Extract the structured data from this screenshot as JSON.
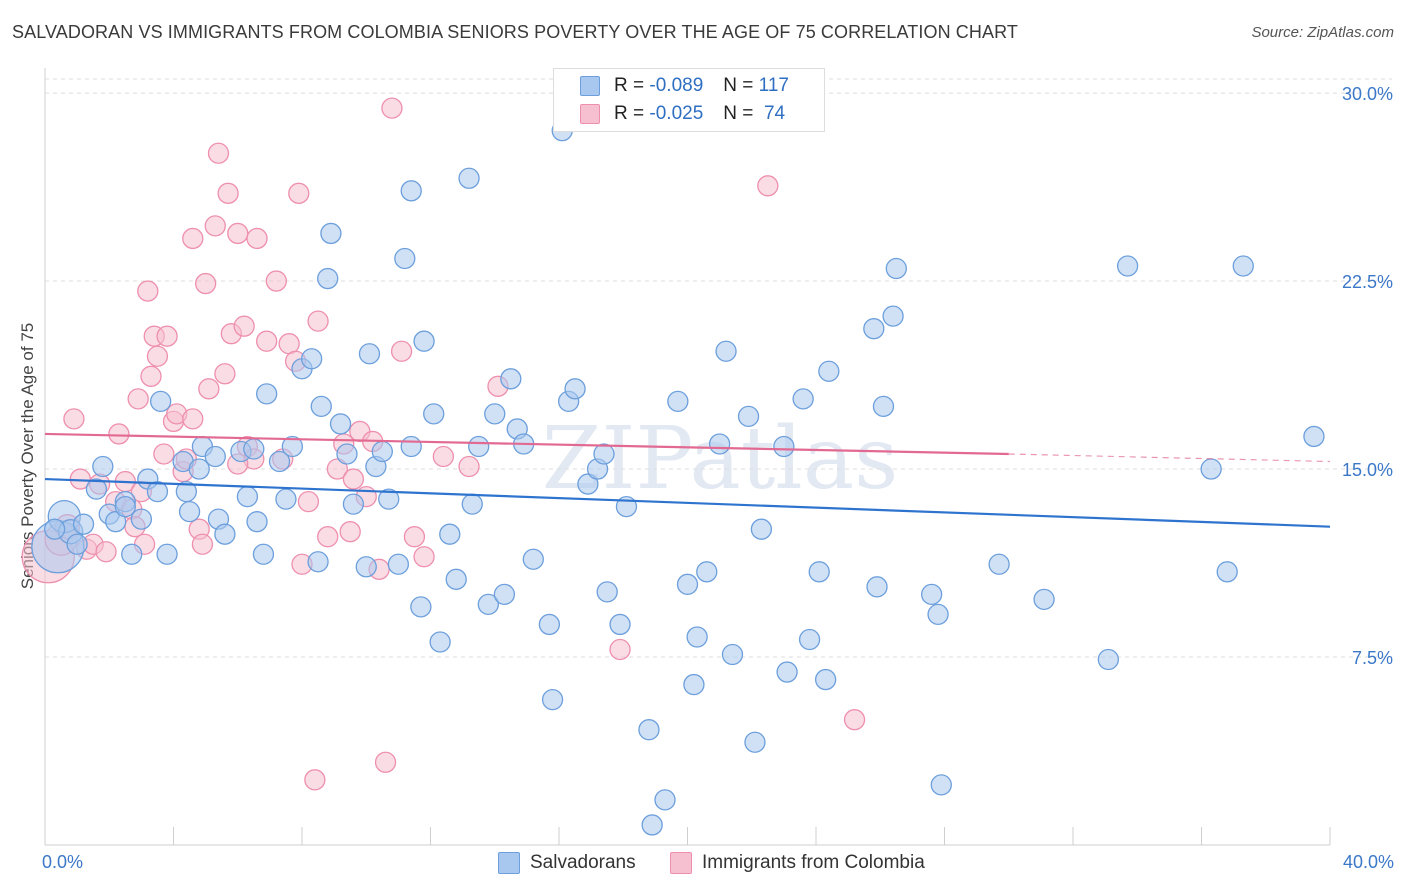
{
  "title": "SALVADORAN VS IMMIGRANTS FROM COLOMBIA SENIORS POVERTY OVER THE AGE OF 75 CORRELATION CHART",
  "source": "Source: ZipAtlas.com",
  "watermark": "ZIPatlas",
  "legend": {
    "r_label": "R =",
    "n_label": "N =",
    "rows": [
      {
        "r": "-0.089",
        "n": "117",
        "color": "#7aaae8"
      },
      {
        "r": "-0.025",
        "n": "74",
        "color": "#f29bb6"
      }
    ]
  },
  "bottom_legend": [
    "Salvadorans",
    "Immigrants from Colombia"
  ],
  "colors": {
    "blue_fill": "#a9c8ef",
    "blue_stroke": "#6c9fdc",
    "blue_line": "#2e74cf",
    "pink_fill": "#f6c0d0",
    "pink_stroke": "#ee8fae",
    "pink_line": "#e26a92",
    "tick_text": "#3b78c8"
  },
  "chart_data": {
    "type": "scatter",
    "title": "SALVADORAN VS IMMIGRANTS FROM COLOMBIA SENIORS POVERTY OVER THE AGE OF 75 CORRELATION CHART",
    "xlabel": "",
    "ylabel": "Seniors Poverty Over the Age of 75",
    "xlim": [
      0,
      40
    ],
    "ylim": [
      0,
      31
    ],
    "x_tick_labels": [
      "0.0%",
      "40.0%"
    ],
    "y_ticks": [
      7.5,
      15.0,
      22.5,
      30.0
    ],
    "y_tick_labels": [
      "7.5%",
      "15.0%",
      "22.5%",
      "30.0%"
    ],
    "grid": "horizontal dashed",
    "series": [
      {
        "name": "Salvadorans",
        "trend": {
          "x0": 0,
          "y0": 14.6,
          "x1": 40,
          "y1": 12.7
        },
        "points": [
          [
            0.4,
            11.9,
            26
          ],
          [
            0.6,
            13.1,
            16
          ],
          [
            0.8,
            12.5,
            12
          ],
          [
            1.0,
            12.0,
            10
          ],
          [
            1.2,
            12.8,
            10
          ],
          [
            0.3,
            12.6,
            10
          ],
          [
            1.6,
            14.2,
            10
          ],
          [
            1.8,
            15.1,
            10
          ],
          [
            2.0,
            13.2,
            10
          ],
          [
            2.2,
            12.9,
            10
          ],
          [
            2.5,
            13.7,
            10
          ],
          [
            2.7,
            11.6,
            10
          ],
          [
            3.0,
            13.0,
            10
          ],
          [
            3.2,
            14.6,
            10
          ],
          [
            3.5,
            14.1,
            10
          ],
          [
            3.6,
            17.7,
            10
          ],
          [
            3.8,
            11.6,
            10
          ],
          [
            4.3,
            15.3,
            10
          ],
          [
            4.4,
            14.1,
            10
          ],
          [
            4.5,
            13.3,
            10
          ],
          [
            4.8,
            15.0,
            10
          ],
          [
            4.9,
            15.9,
            10
          ],
          [
            5.3,
            15.5,
            10
          ],
          [
            5.4,
            13.0,
            10
          ],
          [
            5.6,
            12.4,
            10
          ],
          [
            6.1,
            15.7,
            10
          ],
          [
            6.3,
            13.9,
            10
          ],
          [
            6.6,
            12.9,
            10
          ],
          [
            6.8,
            11.6,
            10
          ],
          [
            6.9,
            18.0,
            10
          ],
          [
            7.3,
            15.3,
            10
          ],
          [
            7.5,
            13.8,
            10
          ],
          [
            7.7,
            15.9,
            10
          ],
          [
            8.0,
            19.0,
            10
          ],
          [
            8.3,
            19.4,
            10
          ],
          [
            8.5,
            11.3,
            10
          ],
          [
            8.6,
            17.5,
            10
          ],
          [
            8.8,
            22.6,
            10
          ],
          [
            8.9,
            24.4,
            10
          ],
          [
            9.2,
            16.8,
            10
          ],
          [
            9.4,
            15.6,
            10
          ],
          [
            9.6,
            13.6,
            10
          ],
          [
            10.0,
            11.1,
            10
          ],
          [
            10.1,
            19.6,
            10
          ],
          [
            10.3,
            15.1,
            10
          ],
          [
            10.5,
            15.7,
            10
          ],
          [
            10.7,
            13.8,
            10
          ],
          [
            11.0,
            11.2,
            10
          ],
          [
            11.2,
            23.4,
            10
          ],
          [
            11.4,
            26.1,
            10
          ],
          [
            11.7,
            9.5,
            10
          ],
          [
            11.8,
            20.1,
            10
          ],
          [
            12.1,
            17.2,
            10
          ],
          [
            12.3,
            8.1,
            10
          ],
          [
            12.6,
            12.4,
            10
          ],
          [
            12.8,
            10.6,
            10
          ],
          [
            13.2,
            26.6,
            10
          ],
          [
            13.3,
            13.6,
            10
          ],
          [
            13.5,
            15.9,
            10
          ],
          [
            13.8,
            9.6,
            10
          ],
          [
            14.0,
            17.2,
            10
          ],
          [
            14.3,
            10.0,
            10
          ],
          [
            14.5,
            18.6,
            10
          ],
          [
            14.7,
            16.6,
            10
          ],
          [
            14.9,
            16.0,
            10
          ],
          [
            15.2,
            11.4,
            10
          ],
          [
            15.7,
            8.8,
            10
          ],
          [
            15.8,
            5.8,
            10
          ],
          [
            16.1,
            28.5,
            10
          ],
          [
            16.3,
            17.7,
            10
          ],
          [
            16.5,
            18.2,
            10
          ],
          [
            16.9,
            14.4,
            10
          ],
          [
            17.2,
            15.0,
            10
          ],
          [
            17.4,
            15.6,
            10
          ],
          [
            17.5,
            10.1,
            10
          ],
          [
            17.9,
            8.8,
            10
          ],
          [
            18.1,
            13.5,
            10
          ],
          [
            18.8,
            4.6,
            10
          ],
          [
            18.9,
            0.8,
            10
          ],
          [
            19.3,
            1.8,
            10
          ],
          [
            19.7,
            17.7,
            10
          ],
          [
            20.0,
            10.4,
            10
          ],
          [
            20.2,
            6.4,
            10
          ],
          [
            20.3,
            8.3,
            10
          ],
          [
            20.6,
            10.9,
            10
          ],
          [
            21.0,
            16.0,
            10
          ],
          [
            21.2,
            19.7,
            10
          ],
          [
            21.4,
            7.6,
            10
          ],
          [
            21.9,
            17.1,
            10
          ],
          [
            22.1,
            4.1,
            10
          ],
          [
            22.3,
            12.6,
            10
          ],
          [
            23.0,
            15.9,
            10
          ],
          [
            23.1,
            6.9,
            10
          ],
          [
            23.6,
            17.8,
            10
          ],
          [
            23.8,
            8.2,
            10
          ],
          [
            24.1,
            10.9,
            10
          ],
          [
            24.3,
            6.6,
            10
          ],
          [
            24.4,
            18.9,
            10
          ],
          [
            25.8,
            20.6,
            10
          ],
          [
            25.9,
            10.3,
            10
          ],
          [
            26.1,
            17.5,
            10
          ],
          [
            26.4,
            21.1,
            10
          ],
          [
            26.5,
            23.0,
            10
          ],
          [
            27.6,
            10.0,
            10
          ],
          [
            27.8,
            9.2,
            10
          ],
          [
            27.9,
            2.4,
            10
          ],
          [
            29.7,
            11.2,
            10
          ],
          [
            31.1,
            9.8,
            10
          ],
          [
            33.1,
            7.4,
            10
          ],
          [
            33.7,
            23.1,
            10
          ],
          [
            36.8,
            10.9,
            10
          ],
          [
            37.3,
            23.1,
            10
          ],
          [
            36.3,
            15.0,
            10
          ],
          [
            39.5,
            16.3,
            10
          ],
          [
            11.4,
            15.9,
            10
          ],
          [
            2.5,
            13.5,
            10
          ],
          [
            6.5,
            15.8,
            10
          ]
        ]
      },
      {
        "name": "Immigrants from Colombia",
        "trend": {
          "x0": 0,
          "y0": 16.4,
          "x1": 30,
          "y1": 15.6
        },
        "trend_dashed": {
          "x0": 30,
          "y0": 15.6,
          "x1": 40,
          "y1": 15.3
        },
        "points": [
          [
            0.1,
            11.5,
            26
          ],
          [
            0.5,
            12.2,
            16
          ],
          [
            0.7,
            12.7,
            12
          ],
          [
            0.9,
            17.0,
            10
          ],
          [
            1.1,
            14.6,
            10
          ],
          [
            1.3,
            11.8,
            10
          ],
          [
            1.5,
            12.0,
            10
          ],
          [
            1.7,
            14.4,
            10
          ],
          [
            1.9,
            11.7,
            10
          ],
          [
            2.2,
            13.7,
            10
          ],
          [
            2.3,
            16.4,
            10
          ],
          [
            2.5,
            14.5,
            10
          ],
          [
            2.7,
            13.4,
            10
          ],
          [
            2.8,
            12.7,
            10
          ],
          [
            2.9,
            17.8,
            10
          ],
          [
            3.1,
            12.0,
            10
          ],
          [
            3.2,
            22.1,
            10
          ],
          [
            3.3,
            18.7,
            10
          ],
          [
            3.4,
            20.3,
            10
          ],
          [
            3.5,
            19.5,
            10
          ],
          [
            3.7,
            15.6,
            10
          ],
          [
            3.8,
            20.3,
            10
          ],
          [
            4.0,
            16.9,
            10
          ],
          [
            4.1,
            17.2,
            10
          ],
          [
            4.3,
            14.9,
            10
          ],
          [
            4.4,
            15.4,
            10
          ],
          [
            4.6,
            24.2,
            10
          ],
          [
            4.8,
            12.6,
            10
          ],
          [
            5.0,
            22.4,
            10
          ],
          [
            5.1,
            18.2,
            10
          ],
          [
            5.3,
            24.7,
            10
          ],
          [
            5.4,
            27.6,
            10
          ],
          [
            5.6,
            18.8,
            10
          ],
          [
            5.7,
            26.0,
            10
          ],
          [
            5.8,
            20.4,
            10
          ],
          [
            6.0,
            24.4,
            10
          ],
          [
            6.2,
            20.7,
            10
          ],
          [
            6.3,
            15.9,
            10
          ],
          [
            6.5,
            15.4,
            10
          ],
          [
            6.6,
            24.2,
            10
          ],
          [
            6.9,
            20.1,
            10
          ],
          [
            7.2,
            22.5,
            10
          ],
          [
            7.4,
            15.4,
            10
          ],
          [
            7.6,
            20.0,
            10
          ],
          [
            7.8,
            19.3,
            10
          ],
          [
            7.9,
            26.0,
            10
          ],
          [
            8.0,
            11.2,
            10
          ],
          [
            8.2,
            13.7,
            10
          ],
          [
            8.4,
            2.6,
            10
          ],
          [
            8.5,
            20.9,
            10
          ],
          [
            8.8,
            12.3,
            10
          ],
          [
            9.1,
            15.0,
            10
          ],
          [
            9.3,
            16.0,
            10
          ],
          [
            9.5,
            12.5,
            10
          ],
          [
            9.6,
            14.6,
            10
          ],
          [
            9.8,
            16.5,
            10
          ],
          [
            10.0,
            13.9,
            10
          ],
          [
            10.2,
            16.1,
            10
          ],
          [
            10.4,
            11.0,
            10
          ],
          [
            10.6,
            3.3,
            10
          ],
          [
            10.8,
            29.4,
            10
          ],
          [
            11.1,
            19.7,
            10
          ],
          [
            11.5,
            12.3,
            10
          ],
          [
            11.8,
            11.5,
            10
          ],
          [
            12.4,
            15.5,
            10
          ],
          [
            13.2,
            15.1,
            10
          ],
          [
            14.1,
            18.3,
            10
          ],
          [
            17.9,
            7.8,
            10
          ],
          [
            22.5,
            26.3,
            10
          ],
          [
            25.2,
            5.0,
            10
          ],
          [
            4.9,
            12.0,
            10
          ],
          [
            6.0,
            15.2,
            10
          ],
          [
            3.0,
            14.1,
            10
          ],
          [
            4.6,
            17.0,
            10
          ]
        ]
      }
    ]
  }
}
